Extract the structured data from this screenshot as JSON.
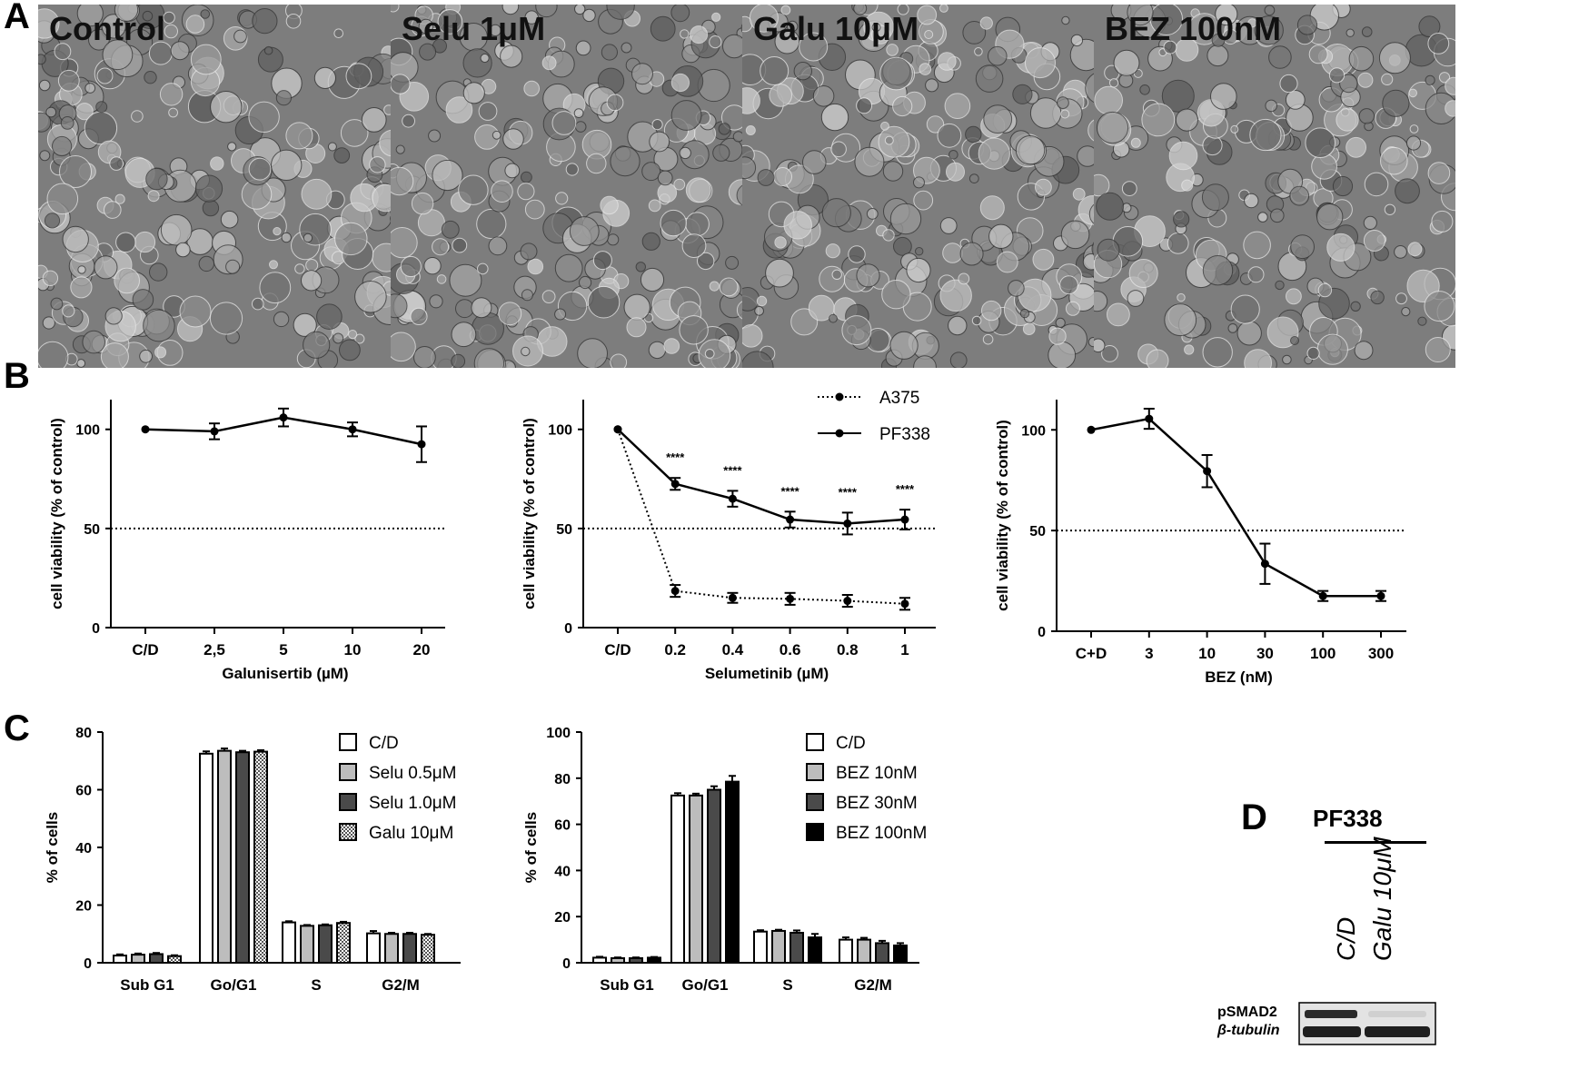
{
  "panel_letters": {
    "a": "A",
    "b": "B",
    "c": "C",
    "d": "D"
  },
  "micrographs": [
    {
      "label": "Control"
    },
    {
      "label": "Selu 1μM"
    },
    {
      "label": "Galu 10μM"
    },
    {
      "label": "BEZ 100nM"
    }
  ],
  "chart_data": [
    {
      "id": "B1",
      "type": "line",
      "categories": [
        "C/D",
        "2,5",
        "5",
        "10",
        "20"
      ],
      "series": [
        {
          "values": [
            100,
            99,
            106,
            100,
            92.5
          ],
          "errors": [
            0,
            4,
            4.5,
            3.5,
            9
          ],
          "style": "solid"
        }
      ],
      "reference_line": 50,
      "yticks": [
        0,
        50,
        100
      ],
      "ylim": [
        0,
        115
      ],
      "xlabel": "Galunisertib (µM)",
      "ylabel": "cell viability (% of control)"
    },
    {
      "id": "B2",
      "type": "line",
      "categories": [
        "C/D",
        "0.2",
        "0.4",
        "0.6",
        "0.8",
        "1"
      ],
      "series": [
        {
          "name": "A375",
          "values": [
            100,
            18.5,
            15,
            14.5,
            13.5,
            12
          ],
          "errors": [
            0,
            3,
            2.5,
            3,
            3,
            3
          ],
          "style": "dotted"
        },
        {
          "name": "PF338",
          "values": [
            100,
            72.5,
            65,
            54.5,
            52.5,
            54.5
          ],
          "errors": [
            0,
            3,
            4,
            4,
            5.5,
            5
          ],
          "style": "solid"
        }
      ],
      "significance": [
        "",
        "****",
        "****",
        "****",
        "****",
        "****"
      ],
      "reference_line": 50,
      "yticks": [
        0,
        50,
        100
      ],
      "ylim": [
        0,
        115
      ],
      "xlabel": "Selumetinib (µM)",
      "ylabel": "cell viability (% of control)"
    },
    {
      "id": "B3",
      "type": "line",
      "categories": [
        "C+D",
        "3",
        "10",
        "30",
        "100",
        "300"
      ],
      "series": [
        {
          "values": [
            100,
            105.5,
            79.5,
            33.5,
            17.5,
            17.5
          ],
          "errors": [
            0,
            5,
            8,
            10,
            2.5,
            2.5
          ],
          "style": "solid"
        }
      ],
      "reference_line": 50,
      "yticks": [
        0,
        50,
        100
      ],
      "ylim": [
        0,
        115
      ],
      "xlabel": "BEZ (nM)",
      "ylabel": "cell viability (% of control)"
    },
    {
      "id": "C1",
      "type": "bar",
      "categories": [
        "Sub G1",
        "Go/G1",
        "S",
        "G2/M"
      ],
      "series": [
        {
          "name": "C/D",
          "values": [
            2.5,
            72.5,
            14,
            10.2
          ],
          "errors": [
            0.4,
            0.8,
            0.4,
            0.8
          ],
          "fill": "#ffffff"
        },
        {
          "name": "Selu 0.5μM",
          "values": [
            2.8,
            73.5,
            12.8,
            10
          ],
          "errors": [
            0.4,
            0.8,
            0.3,
            0.4
          ],
          "fill": "#bdbdbd"
        },
        {
          "name": "Selu 1.0μM",
          "values": [
            3,
            73,
            13,
            10
          ],
          "errors": [
            0.4,
            0.5,
            0.3,
            0.4
          ],
          "fill": "#4a4a4a"
        },
        {
          "name": "Galu 10μM",
          "values": [
            2.3,
            73.2,
            13.8,
            9.7
          ],
          "errors": [
            0.3,
            0.5,
            0.4,
            0.3
          ],
          "fill": "checker"
        }
      ],
      "yticks": [
        0,
        20,
        40,
        60,
        80
      ],
      "ylim": [
        0,
        80
      ],
      "ylabel": "% of cells"
    },
    {
      "id": "C2",
      "type": "bar",
      "categories": [
        "Sub G1",
        "Go/G1",
        "S",
        "G2/M"
      ],
      "series": [
        {
          "name": "C/D",
          "values": [
            2.2,
            72.5,
            13.5,
            10
          ],
          "errors": [
            0.4,
            1,
            0.6,
            1
          ],
          "fill": "#ffffff"
        },
        {
          "name": "BEZ 10nM",
          "values": [
            2,
            72.5,
            13.8,
            10
          ],
          "errors": [
            0.3,
            0.8,
            0.5,
            0.8
          ],
          "fill": "#bdbdbd"
        },
        {
          "name": "BEZ 30nM",
          "values": [
            2,
            75,
            13,
            8.5
          ],
          "errors": [
            0.3,
            1.5,
            1,
            1
          ],
          "fill": "#4a4a4a"
        },
        {
          "name": "BEZ 100nM",
          "values": [
            2.2,
            78.5,
            11,
            7.5
          ],
          "errors": [
            0.3,
            2.5,
            1.5,
            1
          ],
          "fill": "#000000"
        }
      ],
      "yticks": [
        0,
        20,
        40,
        60,
        80,
        100
      ],
      "ylim": [
        0,
        100
      ],
      "ylabel": "% of cells"
    }
  ],
  "western_blot": {
    "title": "PF338",
    "lanes": [
      "C/D",
      "Galu 10μM"
    ],
    "rows": [
      "pSMAD2",
      "β-tubulin"
    ]
  }
}
